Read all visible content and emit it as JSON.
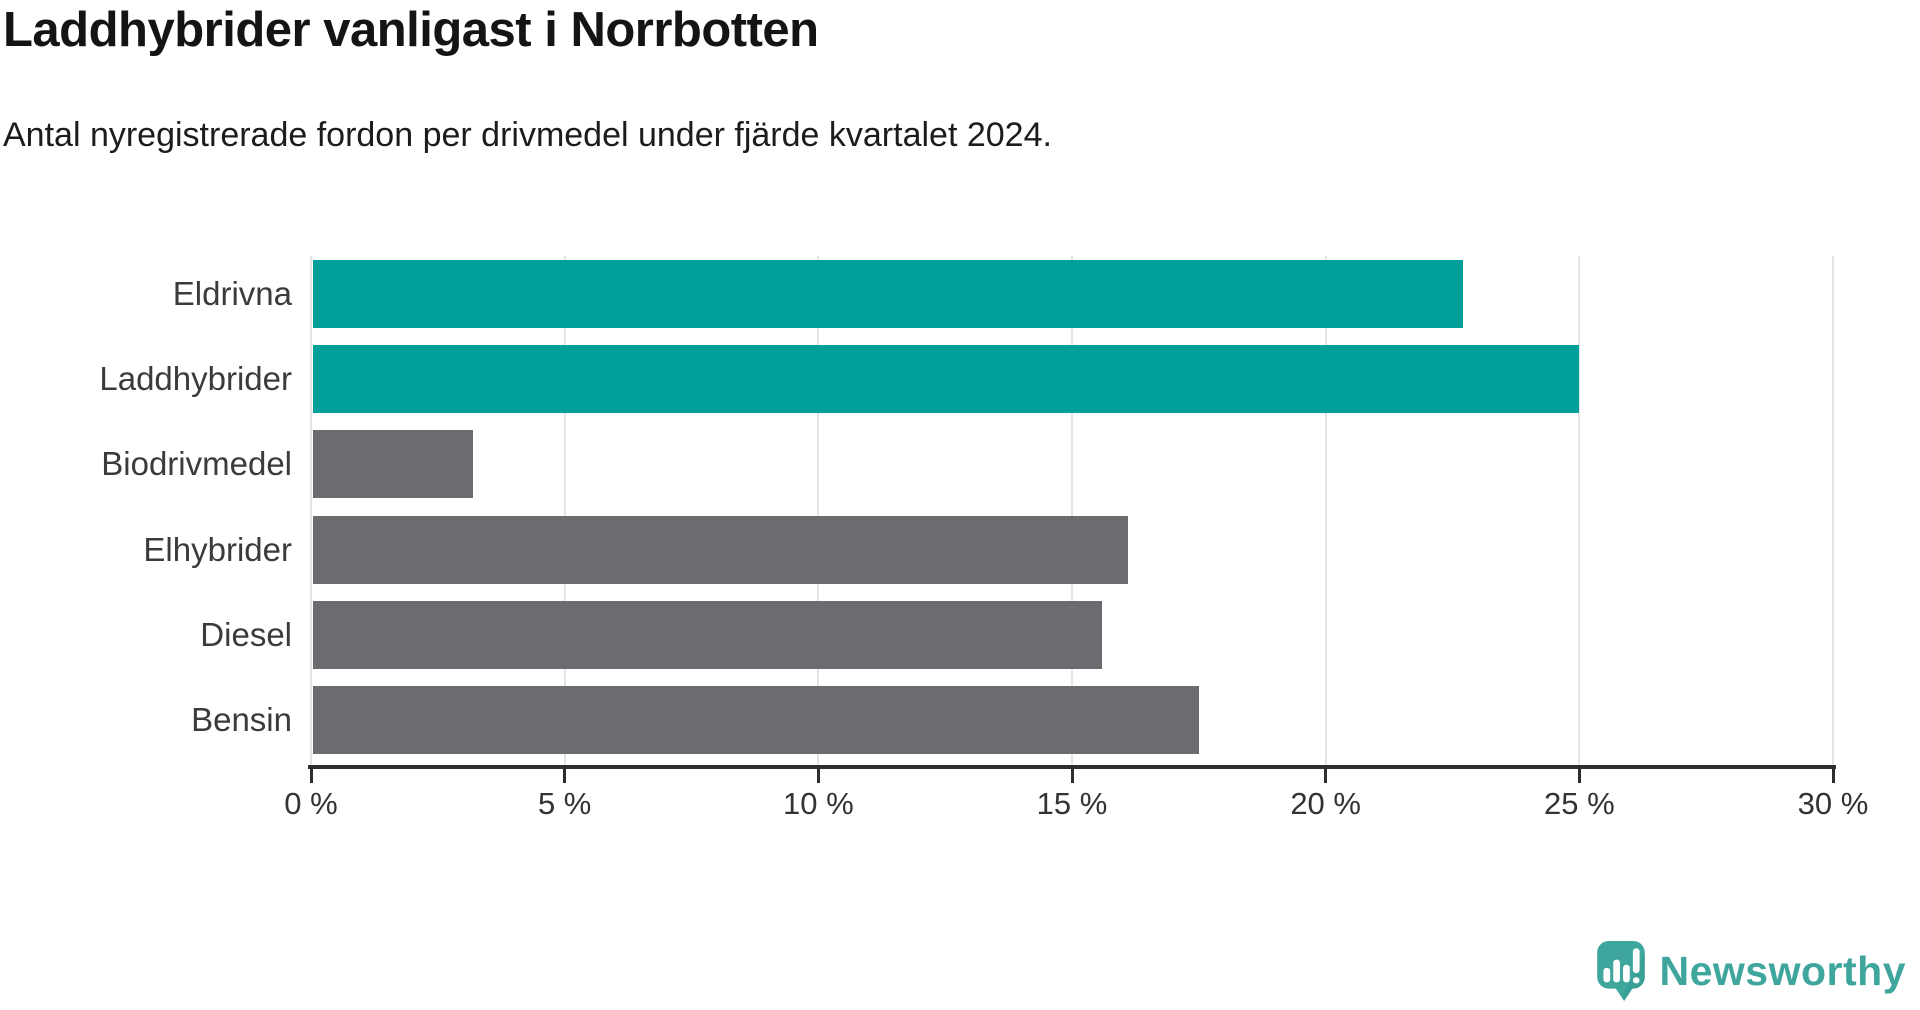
{
  "title": "Laddhybrider vanligast i Norrbotten",
  "subtitle": "Antal nyregistrerade fordon per drivmedel under fjärde kvartalet 2024.",
  "colors": {
    "highlight_bar": "#00a09a",
    "default_bar": "#6b6c6f",
    "gridline": "#e4e4e4",
    "axis": "#2d2d2d",
    "category_label": "#3b3b3b",
    "tick_label": "#333333",
    "logo_teal": "#3ea69d"
  },
  "chart_data": {
    "type": "bar",
    "orientation": "horizontal",
    "title": "Laddhybrider vanligast i Norrbotten",
    "subtitle": "Antal nyregistrerade fordon per drivmedel under fjärde kvartalet 2024.",
    "categories": [
      "Eldrivna",
      "Laddhybrider",
      "Biodrivmedel",
      "Elhybrider",
      "Diesel",
      "Bensin"
    ],
    "values": [
      22.7,
      25.0,
      3.2,
      16.1,
      15.6,
      17.5
    ],
    "unit": "%",
    "highlighted_categories": [
      "Eldrivna",
      "Laddhybrider"
    ],
    "xlim": [
      0,
      30
    ],
    "xtick_values": [
      0,
      5,
      10,
      15,
      20,
      25,
      30
    ],
    "xtick_labels": [
      "0 %",
      "5 %",
      "10 %",
      "15 %",
      "20 %",
      "25 %",
      "30 %"
    ],
    "grid": "vertical-only",
    "legend": "none"
  },
  "branding": {
    "logo_text": "Newsworthy",
    "logo_icon": "newsworthy-speech-bubble-bar-chart-icon"
  }
}
